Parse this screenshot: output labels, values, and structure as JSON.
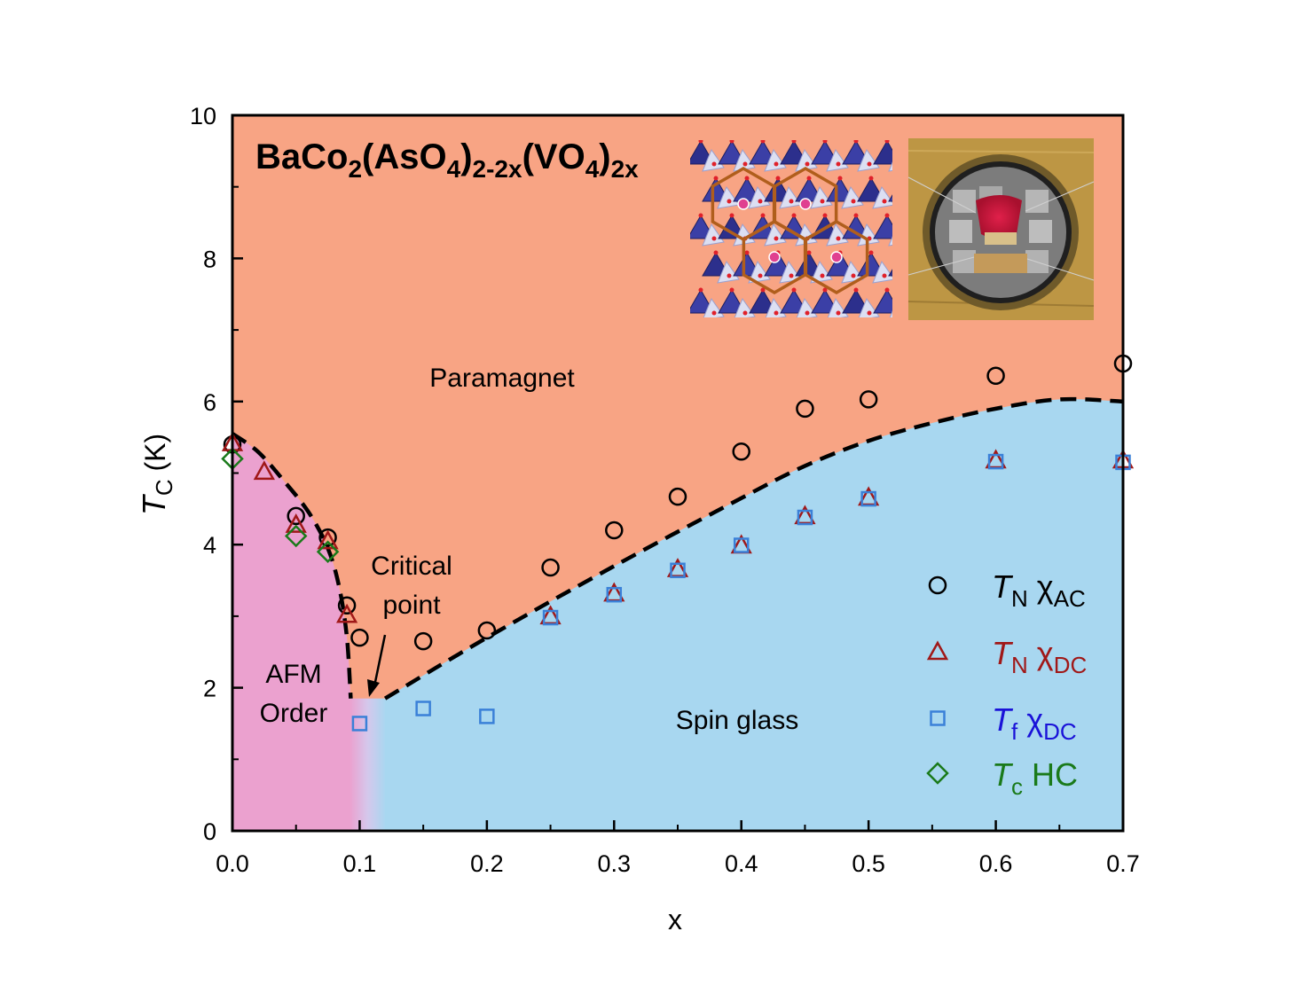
{
  "chart_data": {
    "type": "scatter",
    "title": "BaCo2(AsO4)2-2x(VO4)2x",
    "title_parts": {
      "base": "BaCo",
      "sub1": "2",
      "mid1": "(AsO",
      "sub2": "4",
      "mid2": ")",
      "sub3": "2-2x",
      "mid3": "(VO",
      "sub4": "4",
      "mid4": ")",
      "sub5": "2x"
    },
    "xlabel": "x",
    "ylabel": {
      "main": "T",
      "sub": "C",
      "unit": " (K)"
    },
    "xlim": [
      0,
      0.7
    ],
    "ylim": [
      0,
      10
    ],
    "xticks": [
      "0.0",
      "0.1",
      "0.2",
      "0.3",
      "0.4",
      "0.5",
      "0.6",
      "0.7"
    ],
    "yticks": [
      "0",
      "2",
      "4",
      "6",
      "8",
      "10"
    ],
    "regions": [
      {
        "name": "Paramagnet",
        "color": "#f8a484"
      },
      {
        "name": "AFM Order",
        "color": "#eba1cf"
      },
      {
        "name": "Spin glass",
        "color": "#a8d7f0"
      }
    ],
    "labels": {
      "paramagnet": "Paramagnet",
      "afm_line1": "AFM",
      "afm_line2": "Order",
      "spin_glass": "Spin glass",
      "critical_line1": "Critical",
      "critical_line2": "point"
    },
    "series": [
      {
        "name": "T_N χ_AC",
        "label_main": "T",
        "label_sub": "N",
        "label_chi": "χ",
        "label_chi_sub": "AC",
        "marker": "circle",
        "color": "#000000",
        "x": [
          0.0,
          0.05,
          0.075,
          0.09,
          0.1,
          0.15,
          0.2,
          0.25,
          0.3,
          0.35,
          0.4,
          0.45,
          0.5,
          0.6,
          0.7
        ],
        "y": [
          5.4,
          4.4,
          4.1,
          3.15,
          2.7,
          2.65,
          2.8,
          3.68,
          4.2,
          4.67,
          5.3,
          5.9,
          6.03,
          6.36,
          6.53
        ]
      },
      {
        "name": "T_N χ_DC",
        "label_main": "T",
        "label_sub": "N",
        "label_chi": "χ",
        "label_chi_sub": "DC",
        "marker": "triangle",
        "color": "#a01818",
        "x": [
          0.0,
          0.025,
          0.05,
          0.075,
          0.09,
          0.25,
          0.3,
          0.35,
          0.4,
          0.45,
          0.5,
          0.6,
          0.7
        ],
        "y": [
          5.42,
          5.02,
          4.28,
          4.05,
          3.02,
          3.0,
          3.32,
          3.66,
          3.99,
          4.4,
          4.66,
          5.18,
          5.18
        ]
      },
      {
        "name": "T_f χ_DC",
        "label_main": "T",
        "label_sub": "f",
        "label_chi": "χ",
        "label_chi_sub": "DC",
        "marker": "square",
        "color": "#1a12d8",
        "marker_color": "#3a80d8",
        "x": [
          0.1,
          0.15,
          0.2,
          0.25,
          0.3,
          0.35,
          0.4,
          0.45,
          0.5,
          0.6,
          0.7
        ],
        "y": [
          1.5,
          1.71,
          1.6,
          2.98,
          3.3,
          3.64,
          3.99,
          4.38,
          4.64,
          5.16,
          5.15
        ]
      },
      {
        "name": "T_c HC",
        "label_main": "T",
        "label_sub": "c",
        "label_chi": "HC",
        "label_chi_sub": "",
        "marker": "diamond",
        "color": "#1a7a1a",
        "x": [
          0.0,
          0.05,
          0.075
        ],
        "y": [
          5.2,
          4.12,
          3.9
        ]
      }
    ],
    "boundary_curves": [
      {
        "name": "afm-boundary",
        "x": [
          0.0,
          0.02,
          0.04,
          0.06,
          0.075,
          0.084,
          0.09,
          0.093
        ],
        "y": [
          5.55,
          5.3,
          4.9,
          4.45,
          3.95,
          3.4,
          2.7,
          1.85
        ]
      },
      {
        "name": "spin-glass-boundary",
        "x": [
          0.12,
          0.2,
          0.3,
          0.4,
          0.45,
          0.5,
          0.55,
          0.6,
          0.65,
          0.7
        ],
        "y": [
          1.85,
          2.7,
          3.7,
          4.65,
          5.1,
          5.45,
          5.7,
          5.9,
          6.03,
          6.0
        ]
      }
    ],
    "critical_point": {
      "x_range": [
        0.093,
        0.12
      ],
      "y": 1.85
    },
    "insets": [
      {
        "name": "honeycomb-structure-inset",
        "description_color": "#b05e1c"
      },
      {
        "name": "sample-photo-inset"
      }
    ],
    "grid": false,
    "legend_position": "right"
  }
}
